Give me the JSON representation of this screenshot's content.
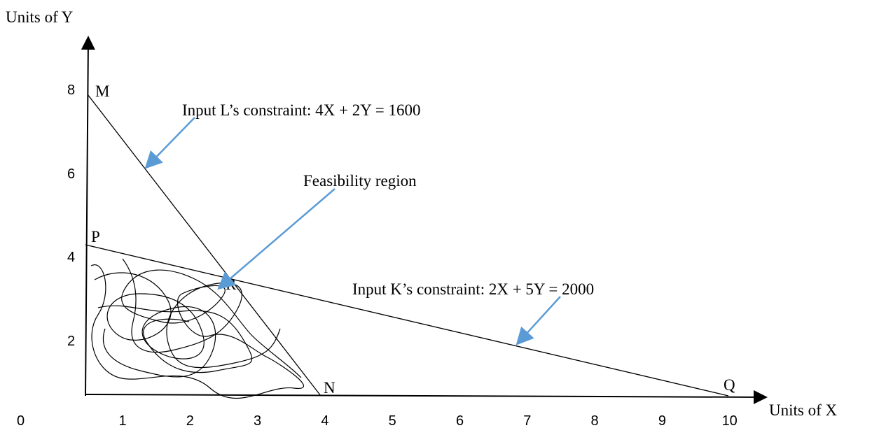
{
  "y_axis": {
    "label": "Units of Y",
    "ticks": [
      "8",
      "6",
      "4",
      "2"
    ]
  },
  "x_axis": {
    "label": "Units of X",
    "origin": "0",
    "ticks": [
      "1",
      "2",
      "3",
      "4",
      "5",
      "6",
      "7",
      "8",
      "9",
      "10"
    ]
  },
  "points": {
    "M": "M",
    "P": "P",
    "R": "R",
    "N": "N",
    "Q": "Q"
  },
  "annotations": {
    "l_constraint": "Input L’s constraint: 4X + 2Y = 1600",
    "feasibility": "Feasibility region",
    "k_constraint": "Input K’s constraint: 2X + 5Y = 2000"
  }
}
